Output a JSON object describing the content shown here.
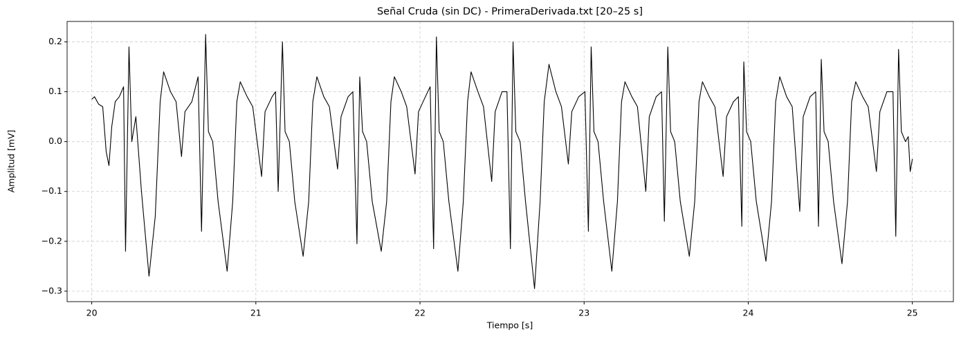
{
  "chart_data": {
    "type": "line",
    "title": "Señal Cruda (sin DC) - PrimeraDerivada.txt [20–25 s]",
    "x_label": "Tiempo [s]",
    "y_label": "Amplitud [mV]",
    "color": "#000000",
    "grid": true,
    "xlim": [
      19.85,
      25.25
    ],
    "ylim": [
      -0.321,
      0.241
    ],
    "xticks": [
      20,
      21,
      22,
      23,
      24,
      25
    ],
    "yticks": [
      {
        "value": -0.3,
        "label": "−0.3"
      },
      {
        "value": -0.2,
        "label": "−0.2"
      },
      {
        "value": -0.1,
        "label": "−0.1"
      },
      {
        "value": 0,
        "label": "0.0"
      },
      0.1,
      0.2
    ],
    "x": [
      20.0,
      20.017,
      20.042,
      20.067,
      20.088,
      20.105,
      20.122,
      20.143,
      20.168,
      20.194,
      20.206,
      20.227,
      20.244,
      20.269,
      20.303,
      20.349,
      20.387,
      20.417,
      20.438,
      20.48,
      20.514,
      20.547,
      20.568,
      20.61,
      20.648,
      20.669,
      20.694,
      20.711,
      20.737,
      20.77,
      20.825,
      20.859,
      20.884,
      20.905,
      20.947,
      20.981,
      21.035,
      21.056,
      21.099,
      21.12,
      21.136,
      21.162,
      21.178,
      21.204,
      21.237,
      21.288,
      21.322,
      21.347,
      21.372,
      21.414,
      21.448,
      21.498,
      21.519,
      21.562,
      21.591,
      21.616,
      21.633,
      21.65,
      21.675,
      21.709,
      21.764,
      21.797,
      21.823,
      21.844,
      21.886,
      21.919,
      21.97,
      21.991,
      22.033,
      22.062,
      22.083,
      22.1,
      22.117,
      22.142,
      22.176,
      22.231,
      22.264,
      22.29,
      22.311,
      22.353,
      22.387,
      22.437,
      22.458,
      22.5,
      22.53,
      22.551,
      22.567,
      22.584,
      22.61,
      22.643,
      22.698,
      22.732,
      22.757,
      22.786,
      22.828,
      22.862,
      22.904,
      22.925,
      22.967,
      23.005,
      23.026,
      23.043,
      23.06,
      23.085,
      23.119,
      23.169,
      23.203,
      23.228,
      23.249,
      23.291,
      23.325,
      23.376,
      23.397,
      23.439,
      23.472,
      23.489,
      23.51,
      23.527,
      23.552,
      23.586,
      23.641,
      23.674,
      23.7,
      23.721,
      23.763,
      23.797,
      23.847,
      23.868,
      23.91,
      23.94,
      23.961,
      23.973,
      23.99,
      24.015,
      24.049,
      24.108,
      24.142,
      24.167,
      24.192,
      24.234,
      24.268,
      24.314,
      24.335,
      24.377,
      24.411,
      24.428,
      24.445,
      24.462,
      24.487,
      24.52,
      24.571,
      24.605,
      24.63,
      24.655,
      24.697,
      24.731,
      24.781,
      24.802,
      24.845,
      24.882,
      24.899,
      24.916,
      24.933,
      24.958,
      24.975,
      24.987,
      25.0
    ],
    "values": [
      0.085,
      0.09,
      0.075,
      0.07,
      -0.02,
      -0.048,
      0.03,
      0.08,
      0.09,
      0.11,
      -0.22,
      0.19,
      0.0,
      0.05,
      -0.1,
      -0.27,
      -0.15,
      0.08,
      0.14,
      0.1,
      0.08,
      -0.03,
      0.06,
      0.08,
      0.13,
      -0.18,
      0.215,
      0.02,
      0.0,
      -0.12,
      -0.26,
      -0.12,
      0.08,
      0.12,
      0.09,
      0.07,
      -0.07,
      0.06,
      0.09,
      0.1,
      -0.1,
      0.2,
      0.02,
      0.0,
      -0.12,
      -0.23,
      -0.12,
      0.08,
      0.13,
      0.09,
      0.07,
      -0.055,
      0.05,
      0.09,
      0.1,
      -0.205,
      0.13,
      0.02,
      0.0,
      -0.12,
      -0.22,
      -0.12,
      0.08,
      0.13,
      0.1,
      0.07,
      -0.065,
      0.06,
      0.09,
      0.11,
      -0.215,
      0.21,
      0.02,
      0.0,
      -0.12,
      -0.26,
      -0.12,
      0.08,
      0.14,
      0.1,
      0.07,
      -0.08,
      0.06,
      0.1,
      0.1,
      -0.215,
      0.2,
      0.02,
      0.0,
      -0.12,
      -0.295,
      -0.12,
      0.08,
      0.155,
      0.1,
      0.07,
      -0.045,
      0.06,
      0.09,
      0.1,
      -0.18,
      0.19,
      0.02,
      0.0,
      -0.12,
      -0.26,
      -0.12,
      0.08,
      0.12,
      0.09,
      0.07,
      -0.1,
      0.05,
      0.09,
      0.1,
      -0.16,
      0.19,
      0.02,
      0.0,
      -0.12,
      -0.23,
      -0.12,
      0.08,
      0.12,
      0.09,
      0.07,
      -0.07,
      0.05,
      0.08,
      0.09,
      -0.17,
      0.16,
      0.02,
      0.0,
      -0.12,
      -0.24,
      -0.12,
      0.08,
      0.13,
      0.09,
      0.07,
      -0.14,
      0.05,
      0.09,
      0.1,
      -0.17,
      0.165,
      0.02,
      0.0,
      -0.12,
      -0.245,
      -0.12,
      0.08,
      0.12,
      0.09,
      0.07,
      -0.06,
      0.06,
      0.1,
      0.1,
      -0.19,
      0.185,
      0.02,
      0.0,
      0.01,
      -0.06,
      -0.035
    ]
  }
}
